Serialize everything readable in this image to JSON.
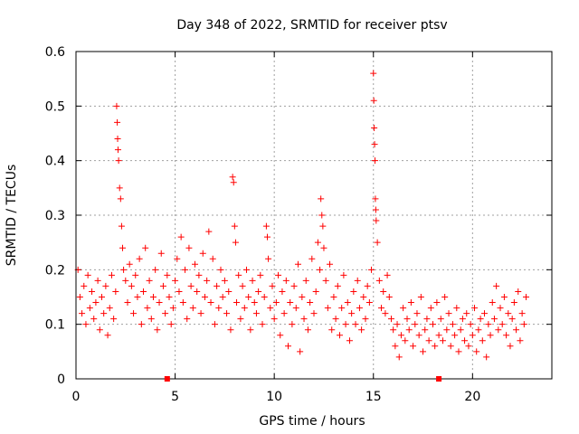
{
  "chart_data": {
    "type": "scatter",
    "title": "Day 348 of 2022, SRMTID for receiver ptsv",
    "xlabel": "GPS time / hours",
    "ylabel": "SRMTID / TECUs",
    "xlim": [
      0,
      24
    ],
    "ylim": [
      0,
      0.6
    ],
    "x_ticks": [
      0,
      5,
      10,
      15,
      20
    ],
    "x_tick_labels": [
      "0",
      "5",
      "10",
      "15",
      "20"
    ],
    "y_ticks": [
      0,
      0.1,
      0.2,
      0.3,
      0.4,
      0.5,
      0.6
    ],
    "y_tick_labels": [
      "0",
      "0.1",
      "0.2",
      "0.3",
      "0.4",
      "0.5",
      "0.6"
    ],
    "grid": true,
    "marker": "plus",
    "series": [
      {
        "name": "SRMTID",
        "color": "#ff0000",
        "points": [
          [
            0.1,
            0.2
          ],
          [
            0.2,
            0.15
          ],
          [
            0.3,
            0.12
          ],
          [
            0.4,
            0.17
          ],
          [
            0.5,
            0.1
          ],
          [
            0.6,
            0.19
          ],
          [
            0.7,
            0.13
          ],
          [
            0.8,
            0.16
          ],
          [
            0.9,
            0.11
          ],
          [
            1.0,
            0.14
          ],
          [
            1.1,
            0.18
          ],
          [
            1.2,
            0.09
          ],
          [
            1.3,
            0.15
          ],
          [
            1.4,
            0.12
          ],
          [
            1.5,
            0.17
          ],
          [
            1.6,
            0.08
          ],
          [
            1.7,
            0.13
          ],
          [
            1.8,
            0.19
          ],
          [
            1.9,
            0.11
          ],
          [
            2.0,
            0.16
          ],
          [
            2.05,
            0.5
          ],
          [
            2.08,
            0.47
          ],
          [
            2.1,
            0.44
          ],
          [
            2.12,
            0.42
          ],
          [
            2.15,
            0.4
          ],
          [
            2.2,
            0.35
          ],
          [
            2.25,
            0.33
          ],
          [
            2.3,
            0.28
          ],
          [
            2.35,
            0.24
          ],
          [
            2.4,
            0.2
          ],
          [
            2.5,
            0.18
          ],
          [
            2.6,
            0.14
          ],
          [
            2.7,
            0.21
          ],
          [
            2.8,
            0.17
          ],
          [
            2.9,
            0.12
          ],
          [
            3.0,
            0.19
          ],
          [
            3.1,
            0.15
          ],
          [
            3.2,
            0.22
          ],
          [
            3.3,
            0.1
          ],
          [
            3.4,
            0.16
          ],
          [
            3.5,
            0.24
          ],
          [
            3.6,
            0.13
          ],
          [
            3.7,
            0.18
          ],
          [
            3.8,
            0.11
          ],
          [
            3.9,
            0.15
          ],
          [
            4.0,
            0.2
          ],
          [
            4.1,
            0.09
          ],
          [
            4.2,
            0.14
          ],
          [
            4.3,
            0.23
          ],
          [
            4.4,
            0.17
          ],
          [
            4.5,
            0.12
          ],
          [
            4.6,
            0.19
          ],
          [
            4.7,
            0.15
          ],
          [
            4.8,
            0.1
          ],
          [
            4.9,
            0.13
          ],
          [
            5.0,
            0.18
          ],
          [
            5.1,
            0.22
          ],
          [
            5.2,
            0.16
          ],
          [
            5.3,
            0.26
          ],
          [
            5.4,
            0.14
          ],
          [
            5.5,
            0.2
          ],
          [
            5.6,
            0.11
          ],
          [
            5.7,
            0.24
          ],
          [
            5.8,
            0.17
          ],
          [
            5.9,
            0.13
          ],
          [
            6.0,
            0.21
          ],
          [
            6.1,
            0.16
          ],
          [
            6.2,
            0.19
          ],
          [
            6.3,
            0.12
          ],
          [
            6.4,
            0.23
          ],
          [
            6.5,
            0.15
          ],
          [
            6.6,
            0.18
          ],
          [
            6.7,
            0.27
          ],
          [
            6.8,
            0.14
          ],
          [
            6.9,
            0.22
          ],
          [
            7.0,
            0.1
          ],
          [
            7.1,
            0.17
          ],
          [
            7.2,
            0.13
          ],
          [
            7.3,
            0.2
          ],
          [
            7.4,
            0.15
          ],
          [
            7.5,
            0.18
          ],
          [
            7.6,
            0.12
          ],
          [
            7.7,
            0.16
          ],
          [
            7.8,
            0.09
          ],
          [
            7.9,
            0.37
          ],
          [
            7.95,
            0.36
          ],
          [
            8.0,
            0.28
          ],
          [
            8.05,
            0.25
          ],
          [
            8.1,
            0.14
          ],
          [
            8.2,
            0.19
          ],
          [
            8.3,
            0.11
          ],
          [
            8.4,
            0.17
          ],
          [
            8.5,
            0.13
          ],
          [
            8.6,
            0.2
          ],
          [
            8.7,
            0.15
          ],
          [
            8.8,
            0.09
          ],
          [
            8.9,
            0.18
          ],
          [
            9.0,
            0.14
          ],
          [
            9.1,
            0.12
          ],
          [
            9.2,
            0.16
          ],
          [
            9.3,
            0.19
          ],
          [
            9.4,
            0.1
          ],
          [
            9.5,
            0.15
          ],
          [
            9.6,
            0.28
          ],
          [
            9.65,
            0.26
          ],
          [
            9.7,
            0.22
          ],
          [
            9.8,
            0.13
          ],
          [
            9.9,
            0.17
          ],
          [
            10.0,
            0.11
          ],
          [
            10.1,
            0.14
          ],
          [
            10.2,
            0.19
          ],
          [
            10.3,
            0.08
          ],
          [
            10.4,
            0.16
          ],
          [
            10.5,
            0.12
          ],
          [
            10.6,
            0.18
          ],
          [
            10.7,
            0.06
          ],
          [
            10.8,
            0.14
          ],
          [
            10.9,
            0.1
          ],
          [
            11.0,
            0.17
          ],
          [
            11.1,
            0.13
          ],
          [
            11.2,
            0.21
          ],
          [
            11.3,
            0.05
          ],
          [
            11.4,
            0.15
          ],
          [
            11.5,
            0.11
          ],
          [
            11.6,
            0.18
          ],
          [
            11.7,
            0.09
          ],
          [
            11.8,
            0.14
          ],
          [
            11.9,
            0.22
          ],
          [
            12.0,
            0.12
          ],
          [
            12.1,
            0.16
          ],
          [
            12.2,
            0.25
          ],
          [
            12.3,
            0.2
          ],
          [
            12.35,
            0.33
          ],
          [
            12.4,
            0.3
          ],
          [
            12.45,
            0.28
          ],
          [
            12.5,
            0.24
          ],
          [
            12.6,
            0.18
          ],
          [
            12.7,
            0.13
          ],
          [
            12.8,
            0.21
          ],
          [
            12.9,
            0.09
          ],
          [
            13.0,
            0.15
          ],
          [
            13.1,
            0.11
          ],
          [
            13.2,
            0.17
          ],
          [
            13.3,
            0.08
          ],
          [
            13.4,
            0.13
          ],
          [
            13.5,
            0.19
          ],
          [
            13.6,
            0.1
          ],
          [
            13.7,
            0.14
          ],
          [
            13.8,
            0.07
          ],
          [
            13.9,
            0.12
          ],
          [
            14.0,
            0.16
          ],
          [
            14.1,
            0.1
          ],
          [
            14.2,
            0.18
          ],
          [
            14.3,
            0.13
          ],
          [
            14.4,
            0.09
          ],
          [
            14.5,
            0.15
          ],
          [
            14.6,
            0.11
          ],
          [
            14.7,
            0.17
          ],
          [
            14.8,
            0.14
          ],
          [
            14.9,
            0.2
          ],
          [
            15.0,
            0.56
          ],
          [
            15.02,
            0.51
          ],
          [
            15.04,
            0.46
          ],
          [
            15.06,
            0.43
          ],
          [
            15.08,
            0.4
          ],
          [
            15.1,
            0.33
          ],
          [
            15.12,
            0.31
          ],
          [
            15.14,
            0.29
          ],
          [
            15.2,
            0.25
          ],
          [
            15.3,
            0.18
          ],
          [
            15.4,
            0.13
          ],
          [
            15.5,
            0.16
          ],
          [
            15.6,
            0.12
          ],
          [
            15.7,
            0.19
          ],
          [
            15.8,
            0.15
          ],
          [
            15.9,
            0.11
          ],
          [
            16.0,
            0.09
          ],
          [
            16.1,
            0.06
          ],
          [
            16.2,
            0.1
          ],
          [
            16.3,
            0.04
          ],
          [
            16.4,
            0.08
          ],
          [
            16.5,
            0.13
          ],
          [
            16.6,
            0.07
          ],
          [
            16.7,
            0.11
          ],
          [
            16.8,
            0.09
          ],
          [
            16.9,
            0.14
          ],
          [
            17.0,
            0.06
          ],
          [
            17.1,
            0.1
          ],
          [
            17.2,
            0.12
          ],
          [
            17.3,
            0.08
          ],
          [
            17.4,
            0.15
          ],
          [
            17.5,
            0.05
          ],
          [
            17.6,
            0.09
          ],
          [
            17.7,
            0.11
          ],
          [
            17.8,
            0.07
          ],
          [
            17.9,
            0.13
          ],
          [
            18.0,
            0.1
          ],
          [
            18.1,
            0.06
          ],
          [
            18.2,
            0.14
          ],
          [
            18.3,
            0.08
          ],
          [
            18.4,
            0.11
          ],
          [
            18.5,
            0.07
          ],
          [
            18.6,
            0.15
          ],
          [
            18.7,
            0.09
          ],
          [
            18.8,
            0.12
          ],
          [
            18.9,
            0.06
          ],
          [
            19.0,
            0.1
          ],
          [
            19.1,
            0.08
          ],
          [
            19.2,
            0.13
          ],
          [
            19.3,
            0.05
          ],
          [
            19.4,
            0.09
          ],
          [
            19.5,
            0.11
          ],
          [
            19.6,
            0.07
          ],
          [
            19.7,
            0.12
          ],
          [
            19.8,
            0.06
          ],
          [
            19.9,
            0.1
          ],
          [
            20.0,
            0.08
          ],
          [
            20.1,
            0.13
          ],
          [
            20.2,
            0.05
          ],
          [
            20.3,
            0.09
          ],
          [
            20.4,
            0.11
          ],
          [
            20.5,
            0.07
          ],
          [
            20.6,
            0.12
          ],
          [
            20.7,
            0.04
          ],
          [
            20.8,
            0.1
          ],
          [
            20.9,
            0.08
          ],
          [
            21.0,
            0.14
          ],
          [
            21.1,
            0.11
          ],
          [
            21.2,
            0.17
          ],
          [
            21.3,
            0.09
          ],
          [
            21.4,
            0.13
          ],
          [
            21.5,
            0.1
          ],
          [
            21.6,
            0.15
          ],
          [
            21.7,
            0.08
          ],
          [
            21.8,
            0.12
          ],
          [
            21.9,
            0.06
          ],
          [
            22.0,
            0.11
          ],
          [
            22.1,
            0.14
          ],
          [
            22.2,
            0.09
          ],
          [
            22.3,
            0.16
          ],
          [
            22.4,
            0.07
          ],
          [
            22.5,
            0.12
          ],
          [
            22.6,
            0.1
          ],
          [
            22.7,
            0.15
          ]
        ]
      }
    ],
    "axis_markers": [
      {
        "x": 4.6,
        "y": 0
      },
      {
        "x": 18.3,
        "y": 0
      }
    ]
  },
  "colors": {
    "series": "#ff0000",
    "grid": "#a0a0a0",
    "axis": "#000000",
    "background": "#ffffff"
  }
}
